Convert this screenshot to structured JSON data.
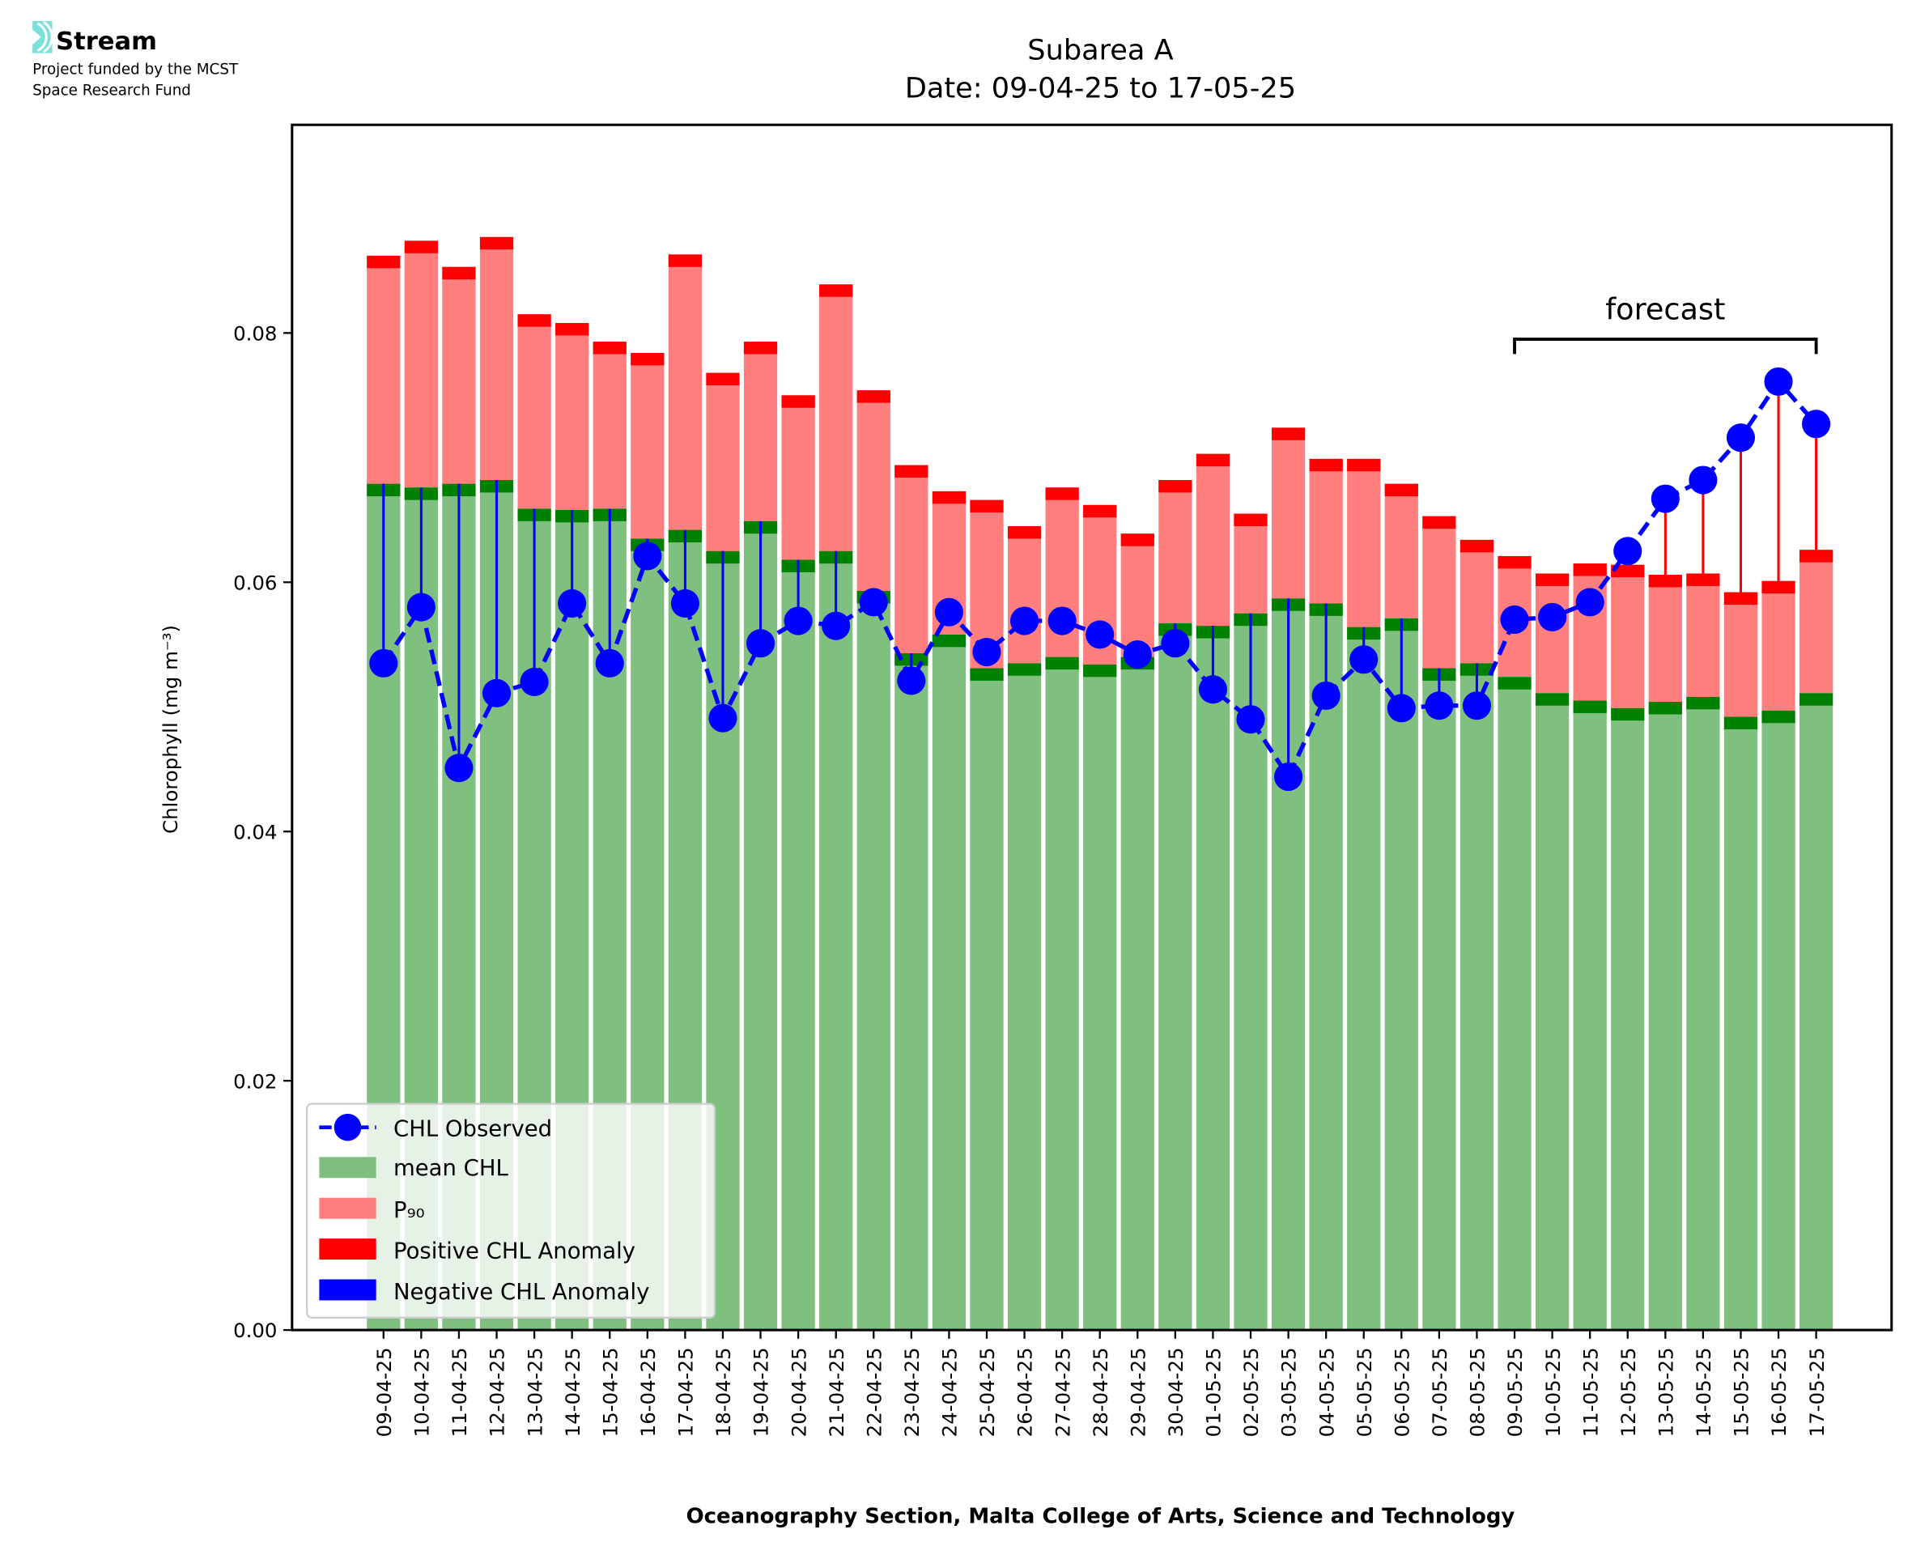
{
  "logo": {
    "name": "Stream",
    "line1": "Project funded by the MCST",
    "line2": "Space Research Fund",
    "color": "#7fdfdc"
  },
  "chart_data": {
    "type": "bar",
    "title": "Subarea A",
    "subtitle": "Date: 09-04-25 to 17-05-25",
    "xlabel": "Oceanography Section, Malta College of Arts, Science and Technology",
    "ylabel": "Chlorophyll (mg m⁻³)",
    "ylim": [
      0,
      0.0967
    ],
    "yticks": [
      0,
      0.02,
      0.04,
      0.06,
      0.08
    ],
    "ytick_labels": [
      "0.00",
      "0.02",
      "0.04",
      "0.06",
      "0.08"
    ],
    "annotation": "forecast",
    "forecast_range": [
      "09-05-25",
      "17-05-25"
    ],
    "legend_position": "lower-left",
    "legend": [
      "CHL Observed",
      "mean CHL",
      "P₉₀",
      "Positive CHL Anomaly",
      "Negative CHL Anomaly"
    ],
    "colors": {
      "observed": "#0000ff",
      "mean": "#7fbf7f",
      "mean_cap": "#008000",
      "p90": "#ff7f7f",
      "p90_cap": "#ff0000",
      "pos": "#ff0000",
      "neg": "#0000ff"
    },
    "categories": [
      "09-04-25",
      "10-04-25",
      "11-04-25",
      "12-04-25",
      "13-04-25",
      "14-04-25",
      "15-04-25",
      "16-04-25",
      "17-04-25",
      "18-04-25",
      "19-04-25",
      "20-04-25",
      "21-04-25",
      "22-04-25",
      "23-04-25",
      "24-04-25",
      "25-04-25",
      "26-04-25",
      "27-04-25",
      "28-04-25",
      "29-04-25",
      "30-04-25",
      "01-05-25",
      "02-05-25",
      "03-05-25",
      "04-05-25",
      "05-05-25",
      "06-05-25",
      "07-05-25",
      "08-05-25",
      "09-05-25",
      "10-05-25",
      "11-05-25",
      "12-05-25",
      "13-05-25",
      "14-05-25",
      "15-05-25",
      "16-05-25",
      "17-05-25"
    ],
    "series": [
      {
        "name": "mean CHL",
        "values": [
          0.0679,
          0.0676,
          0.0679,
          0.0682,
          0.0659,
          0.0658,
          0.0659,
          0.0635,
          0.0642,
          0.0625,
          0.0649,
          0.0618,
          0.0625,
          0.0593,
          0.0543,
          0.0558,
          0.0531,
          0.0535,
          0.054,
          0.0534,
          0.054,
          0.0567,
          0.0565,
          0.0575,
          0.0587,
          0.0583,
          0.0564,
          0.0571,
          0.0531,
          0.0535,
          0.0524,
          0.0511,
          0.0505,
          0.0499,
          0.0504,
          0.0508,
          0.0492,
          0.0497,
          0.0511
        ]
      },
      {
        "name": "P90",
        "values": [
          0.0862,
          0.0874,
          0.0853,
          0.0877,
          0.0815,
          0.0808,
          0.0793,
          0.0784,
          0.0863,
          0.0768,
          0.0793,
          0.075,
          0.0839,
          0.0754,
          0.0694,
          0.0673,
          0.0666,
          0.0645,
          0.0676,
          0.0662,
          0.0639,
          0.0682,
          0.0703,
          0.0655,
          0.0724,
          0.0699,
          0.0699,
          0.0679,
          0.0653,
          0.0634,
          0.0621,
          0.0607,
          0.0615,
          0.0614,
          0.0606,
          0.0607,
          0.0592,
          0.0601,
          0.0626
        ]
      },
      {
        "name": "CHL Observed",
        "values": [
          0.0535,
          0.058,
          0.0451,
          0.0511,
          0.052,
          0.0583,
          0.0535,
          0.0621,
          0.0583,
          0.0491,
          0.0551,
          0.0569,
          0.0565,
          0.0584,
          0.0521,
          0.0576,
          0.0544,
          0.0569,
          0.0569,
          0.0558,
          0.0542,
          0.0551,
          0.0514,
          0.049,
          0.0444,
          0.0509,
          0.0538,
          0.0499,
          0.0501,
          0.0501,
          0.057,
          0.0572,
          0.0584,
          0.0625,
          0.0667,
          0.0682,
          0.0716,
          0.0761,
          0.0727
        ]
      }
    ]
  }
}
